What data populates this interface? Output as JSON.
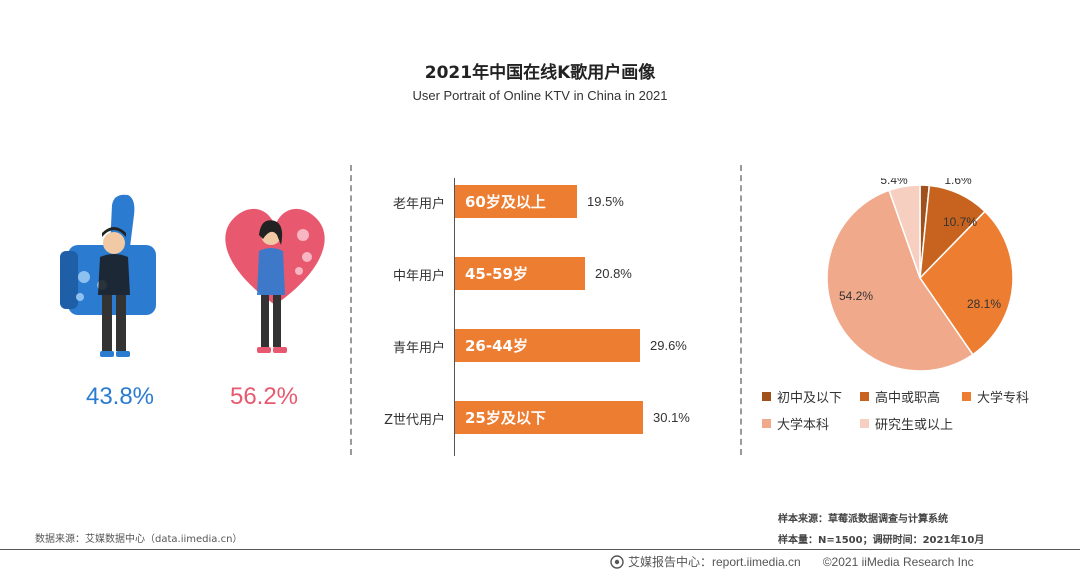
{
  "title": "2021年中国在线K歌用户画像",
  "subtitle": "User Portrait of Online KTV in China in 2021",
  "chart_data": [
    {
      "type": "bar",
      "name": "gender",
      "categories": [
        "male",
        "female"
      ],
      "values": [
        43.8,
        56.2
      ],
      "labels": [
        "43.8%",
        "56.2%"
      ],
      "colors": [
        "#2b7bd1",
        "#e8596f"
      ]
    },
    {
      "type": "bar",
      "orientation": "horizontal",
      "categories": [
        "老年用户",
        "中年用户",
        "青年用户",
        "Z世代用户"
      ],
      "bar_labels": [
        "60岁及以上",
        "45-59岁",
        "26-44岁",
        "25岁及以下"
      ],
      "values": [
        19.5,
        20.8,
        29.6,
        30.1
      ],
      "value_labels": [
        "19.5%",
        "20.8%",
        "29.6%",
        "30.1%"
      ],
      "color": "#ed7d31"
    },
    {
      "type": "pie",
      "categories": [
        "初中及以下",
        "高中或职高",
        "大学专科",
        "大学本科",
        "研究生或以上"
      ],
      "values": [
        1.6,
        10.7,
        28.1,
        54.2,
        5.4
      ],
      "labels": [
        "1.6%",
        "10.7%",
        "28.1%",
        "54.2%",
        "5.4%"
      ],
      "colors": [
        "#a0521c",
        "#c8631f",
        "#ed7d31",
        "#f0a98a",
        "#f6cfc0"
      ],
      "legend": "bottom"
    }
  ],
  "footer": {
    "data_source": "数据来源：艾媒数据中心（data.iimedia.cn）",
    "sample_source": "样本来源：草莓派数据调查与计算系统",
    "sample_info": "样本量：N=1500；调研时间：2021年10月",
    "report_center": "艾媒报告中心：report.iimedia.cn",
    "copyright": "©2021  iiMedia Research  Inc"
  }
}
